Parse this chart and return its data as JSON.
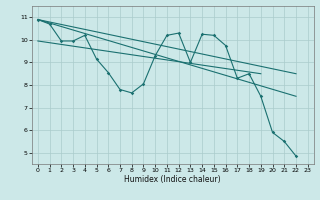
{
  "title": "",
  "xlabel": "Humidex (Indice chaleur)",
  "ylabel": "",
  "bg_color": "#cce8e8",
  "grid_color": "#aacccc",
  "line_color": "#1a7070",
  "xlim": [
    -0.5,
    23.5
  ],
  "ylim": [
    4.5,
    11.5
  ],
  "xticks": [
    0,
    1,
    2,
    3,
    4,
    5,
    6,
    7,
    8,
    9,
    10,
    11,
    12,
    13,
    14,
    15,
    16,
    17,
    18,
    19,
    20,
    21,
    22,
    23
  ],
  "yticks": [
    5,
    6,
    7,
    8,
    9,
    10,
    11
  ],
  "series": [
    {
      "x": [
        0,
        1,
        2,
        3,
        4,
        5,
        6,
        7,
        8,
        9,
        10,
        11,
        12,
        13,
        14,
        15,
        16,
        17,
        18,
        19,
        20,
        21,
        22
      ],
      "y": [
        10.9,
        10.7,
        9.95,
        9.95,
        10.2,
        9.15,
        8.55,
        7.8,
        7.65,
        8.05,
        9.3,
        10.2,
        10.3,
        9.0,
        10.25,
        10.2,
        9.75,
        8.3,
        8.5,
        7.5,
        5.9,
        5.5,
        4.85
      ],
      "marker": true
    },
    {
      "x": [
        0,
        22
      ],
      "y": [
        10.9,
        8.5
      ],
      "marker": false
    },
    {
      "x": [
        0,
        22
      ],
      "y": [
        10.9,
        7.5
      ],
      "marker": false
    },
    {
      "x": [
        0,
        19
      ],
      "y": [
        9.95,
        8.5
      ],
      "marker": false
    }
  ]
}
